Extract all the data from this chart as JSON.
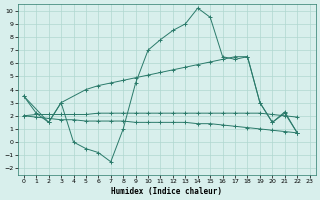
{
  "xlabel": "Humidex (Indice chaleur)",
  "bg_color": "#d8efec",
  "line_color": "#2a7a6a",
  "grid_color": "#b0d8d0",
  "xlim": [
    -0.5,
    23.5
  ],
  "ylim": [
    -2.5,
    10.5
  ],
  "xticks": [
    0,
    1,
    2,
    3,
    4,
    5,
    6,
    7,
    8,
    9,
    10,
    11,
    12,
    13,
    14,
    15,
    16,
    17,
    18,
    19,
    20,
    21,
    22,
    23
  ],
  "yticks": [
    -2,
    -1,
    0,
    1,
    2,
    3,
    4,
    5,
    6,
    7,
    8,
    9,
    10
  ],
  "line1_x": [
    0,
    1,
    2,
    3,
    4,
    5,
    6,
    7,
    8,
    9,
    10,
    11,
    12,
    13,
    14,
    15,
    16,
    17,
    18,
    19,
    20,
    21,
    22
  ],
  "line1_y": [
    3.5,
    2.2,
    1.5,
    3.0,
    0.0,
    -0.5,
    -0.8,
    -1.5,
    1.0,
    4.5,
    7.0,
    7.8,
    8.5,
    9.0,
    10.2,
    9.5,
    6.5,
    6.3,
    6.5,
    3.0,
    1.5,
    2.3,
    0.7
  ],
  "line2_x": [
    0,
    2,
    3,
    5,
    6,
    7,
    8,
    9,
    10,
    11,
    12,
    13,
    14,
    15,
    16,
    17,
    18,
    19,
    20,
    21,
    22
  ],
  "line2_y": [
    3.5,
    1.5,
    3.0,
    4.0,
    4.3,
    4.5,
    4.7,
    4.9,
    5.1,
    5.3,
    5.5,
    5.7,
    5.9,
    6.1,
    6.3,
    6.5,
    6.5,
    3.0,
    1.5,
    2.2,
    0.7
  ],
  "line3_x": [
    0,
    1,
    2,
    3,
    4,
    5,
    6,
    7,
    8,
    9,
    10,
    11,
    12,
    13,
    14,
    15,
    16,
    17,
    18,
    19,
    20,
    21,
    22
  ],
  "line3_y": [
    2.0,
    2.1,
    2.1,
    2.1,
    2.1,
    2.1,
    2.2,
    2.2,
    2.2,
    2.2,
    2.2,
    2.2,
    2.2,
    2.2,
    2.2,
    2.2,
    2.2,
    2.2,
    2.2,
    2.2,
    2.1,
    2.0,
    1.9
  ],
  "line4_x": [
    0,
    1,
    2,
    3,
    4,
    5,
    6,
    7,
    8,
    9,
    10,
    11,
    12,
    13,
    14,
    15,
    16,
    17,
    18,
    19,
    20,
    21,
    22
  ],
  "line4_y": [
    2.0,
    1.9,
    1.8,
    1.7,
    1.7,
    1.6,
    1.6,
    1.6,
    1.6,
    1.5,
    1.5,
    1.5,
    1.5,
    1.5,
    1.4,
    1.4,
    1.3,
    1.2,
    1.1,
    1.0,
    0.9,
    0.8,
    0.7
  ]
}
